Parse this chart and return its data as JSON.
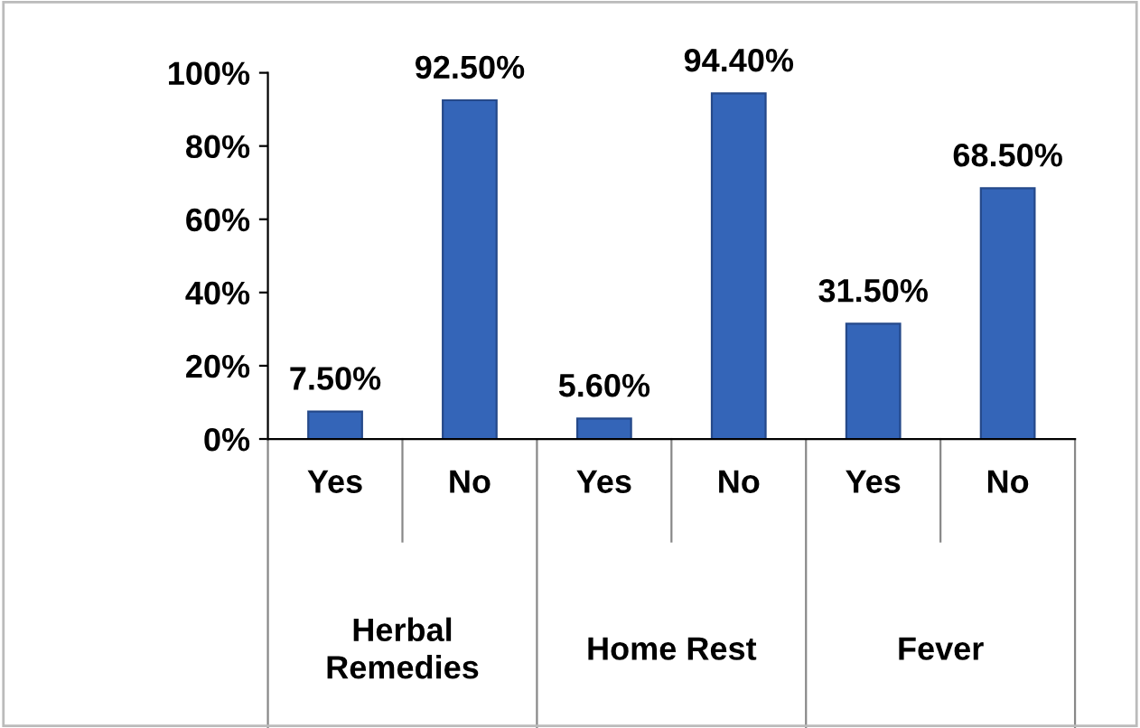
{
  "chart_data": {
    "type": "bar",
    "categories": [
      "Yes",
      "No",
      "Yes",
      "No",
      "Yes",
      "No"
    ],
    "values": [
      7.5,
      92.5,
      5.6,
      94.4,
      31.5,
      68.5
    ],
    "value_labels": [
      "7.50%",
      "92.50%",
      "5.60%",
      "94.40%",
      "31.50%",
      "68.50%"
    ],
    "color": "#3465b8",
    "ylim": [
      0,
      100
    ],
    "yticks": [
      {
        "value": 0,
        "label": "0%"
      },
      {
        "value": 20,
        "label": "20%"
      },
      {
        "value": 40,
        "label": "40%"
      },
      {
        "value": 60,
        "label": "60%"
      },
      {
        "value": 80,
        "label": "80%"
      },
      {
        "value": 100,
        "label": "100%"
      }
    ],
    "annotations": [
      "Herbal\nRemedies",
      "Home Rest",
      "Fever"
    ],
    "grid": false,
    "legend": false
  }
}
